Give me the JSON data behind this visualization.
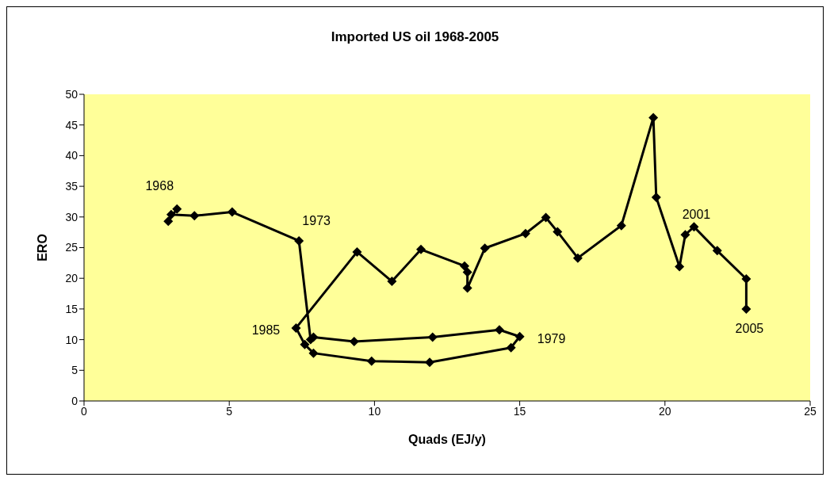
{
  "chart_data": {
    "type": "line",
    "title": "Imported US oil 1968-2005",
    "xlabel": "Quads (EJ/y)",
    "ylabel": "ERO",
    "x": [
      3.2,
      2.9,
      3.0,
      3.8,
      5.1,
      7.4,
      7.8,
      7.9,
      9.3,
      12.0,
      14.3,
      15.0,
      14.7,
      11.9,
      9.9,
      7.9,
      7.6,
      7.3,
      9.4,
      10.6,
      11.6,
      13.1,
      13.2,
      13.2,
      13.8,
      15.2,
      15.9,
      16.3,
      17.0,
      18.5,
      19.6,
      19.7,
      20.5,
      20.7,
      21.0,
      21.8,
      22.8,
      22.8
    ],
    "values": [
      31.3,
      29.3,
      30.4,
      30.2,
      30.8,
      26.1,
      10.0,
      10.4,
      9.7,
      10.4,
      11.6,
      10.5,
      8.7,
      6.3,
      6.5,
      7.8,
      9.2,
      11.9,
      24.3,
      19.5,
      24.7,
      22.0,
      21.0,
      18.4,
      24.9,
      27.3,
      29.9,
      27.6,
      23.3,
      28.6,
      46.2,
      33.2,
      21.9,
      27.1,
      28.4,
      24.5,
      19.9,
      15.0
    ],
    "color": "#000000",
    "marker": "diamond",
    "line_style": "solid",
    "xlim": [
      0,
      25
    ],
    "xticks": [
      0,
      5,
      10,
      15,
      20,
      25
    ],
    "ylim": [
      0,
      50
    ],
    "yticks": [
      0,
      5,
      10,
      15,
      20,
      25,
      30,
      35,
      40,
      45,
      50
    ],
    "grid": false,
    "legend": false,
    "annotations": [
      {
        "text": "1968",
        "x": 3.2,
        "y": 31.3
      },
      {
        "text": "1973",
        "x": 7.4,
        "y": 26.1
      },
      {
        "text": "1979",
        "x": 15.0,
        "y": 10.5
      },
      {
        "text": "1985",
        "x": 7.3,
        "y": 11.9
      },
      {
        "text": "2001",
        "x": 20.7,
        "y": 27.1
      },
      {
        "text": "2005",
        "x": 22.8,
        "y": 15.0
      }
    ]
  }
}
